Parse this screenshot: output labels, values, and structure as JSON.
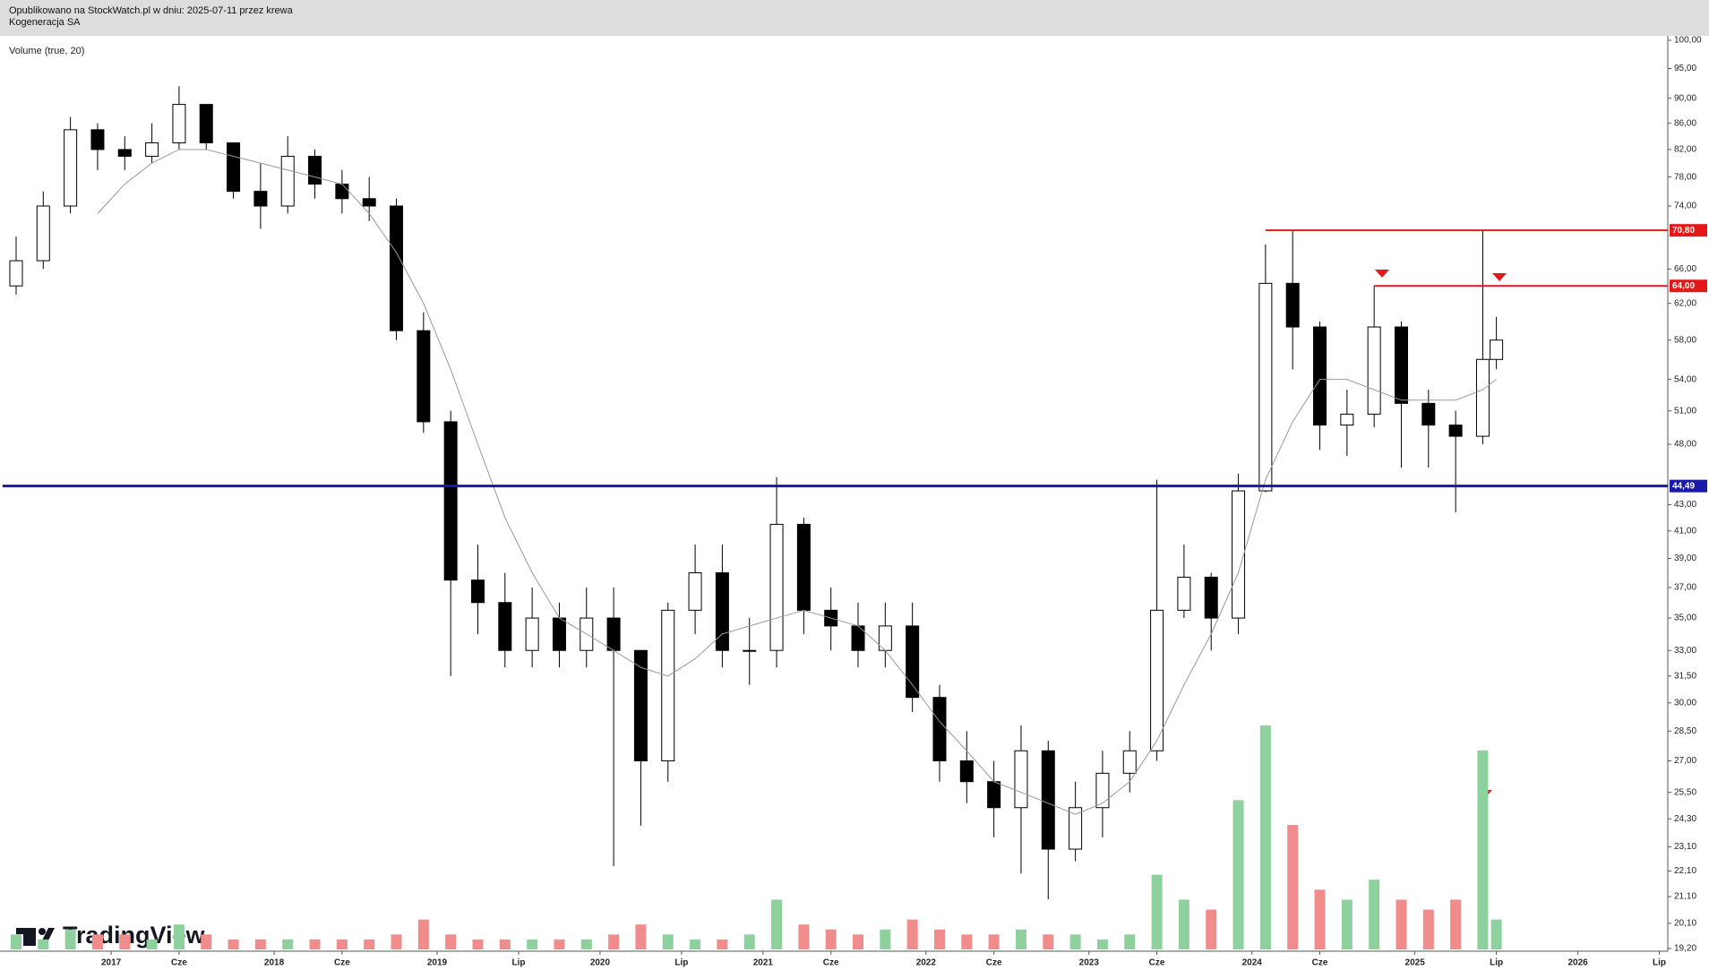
{
  "header": {
    "published": "Opublikowano na StockWatch.pl w dniu: 2025-07-11 przez krewa",
    "ticker": "Kogeneracja SA"
  },
  "chart_data": {
    "type": "candlestick",
    "indicator": "Volume (true, 20)",
    "watermark": "TradingView",
    "ylog": true,
    "ylim": [
      19.2,
      100
    ],
    "yticks": [
      {
        "value": 100,
        "label": "100,00"
      },
      {
        "value": 95,
        "label": "95,00"
      },
      {
        "value": 90,
        "label": "90,00"
      },
      {
        "value": 86,
        "label": "86,00"
      },
      {
        "value": 82,
        "label": "82,00"
      },
      {
        "value": 78,
        "label": "78,00"
      },
      {
        "value": 74,
        "label": "74,00"
      },
      {
        "value": 66,
        "label": "66,00"
      },
      {
        "value": 62,
        "label": "62,00"
      },
      {
        "value": 58,
        "label": "58,00"
      },
      {
        "value": 54,
        "label": "54,00"
      },
      {
        "value": 51,
        "label": "51,00"
      },
      {
        "value": 48,
        "label": "48,00"
      },
      {
        "value": 43,
        "label": "43,00"
      },
      {
        "value": 41,
        "label": "41,00"
      },
      {
        "value": 39,
        "label": "39,00"
      },
      {
        "value": 37,
        "label": "37,00"
      },
      {
        "value": 35,
        "label": "35,00"
      },
      {
        "value": 33,
        "label": "33,00"
      },
      {
        "value": 31.5,
        "label": "31,50"
      },
      {
        "value": 30,
        "label": "30,00"
      },
      {
        "value": 28.5,
        "label": "28,50"
      },
      {
        "value": 27,
        "label": "27,00"
      },
      {
        "value": 25.5,
        "label": "25,50"
      },
      {
        "value": 24.3,
        "label": "24,30"
      },
      {
        "value": 23.1,
        "label": "23,10"
      },
      {
        "value": 22.1,
        "label": "22,10"
      },
      {
        "value": 21.1,
        "label": "21,10"
      },
      {
        "value": 20.1,
        "label": "20,10"
      },
      {
        "value": 19.2,
        "label": "19,20"
      }
    ],
    "xticks": [
      {
        "value": "2017-01",
        "label": "2017"
      },
      {
        "value": "2017-06",
        "label": "Cze"
      },
      {
        "value": "2018-01",
        "label": "2018"
      },
      {
        "value": "2018-06",
        "label": "Cze"
      },
      {
        "value": "2019-01",
        "label": "2019"
      },
      {
        "value": "2019-07",
        "label": "Lip"
      },
      {
        "value": "2020-01",
        "label": "2020"
      },
      {
        "value": "2020-07",
        "label": "Lip"
      },
      {
        "value": "2021-01",
        "label": "2021"
      },
      {
        "value": "2021-06",
        "label": "Cze"
      },
      {
        "value": "2022-01",
        "label": "2022"
      },
      {
        "value": "2022-06",
        "label": "Cze"
      },
      {
        "value": "2023-01",
        "label": "2023"
      },
      {
        "value": "2023-06",
        "label": "Cze"
      },
      {
        "value": "2024-01",
        "label": "2024"
      },
      {
        "value": "2024-06",
        "label": "Cze"
      },
      {
        "value": "2025-01",
        "label": "2025"
      },
      {
        "value": "2025-07",
        "label": "Lip"
      },
      {
        "value": "2026-01",
        "label": "2026"
      },
      {
        "value": "2026-07",
        "label": "Lip"
      }
    ],
    "x": [
      "2016-06",
      "2016-08",
      "2016-10",
      "2016-12",
      "2017-02",
      "2017-04",
      "2017-06",
      "2017-08",
      "2017-10",
      "2017-12",
      "2018-02",
      "2018-04",
      "2018-06",
      "2018-08",
      "2018-10",
      "2018-12",
      "2019-02",
      "2019-04",
      "2019-06",
      "2019-08",
      "2019-10",
      "2019-12",
      "2020-02",
      "2020-04",
      "2020-06",
      "2020-08",
      "2020-10",
      "2020-12",
      "2021-02",
      "2021-04",
      "2021-06",
      "2021-08",
      "2021-10",
      "2021-12",
      "2022-02",
      "2022-04",
      "2022-06",
      "2022-08",
      "2022-10",
      "2022-12",
      "2023-02",
      "2023-04",
      "2023-06",
      "2023-08",
      "2023-10",
      "2023-12",
      "2024-02",
      "2024-04",
      "2024-06",
      "2024-08",
      "2024-10",
      "2024-12",
      "2025-02",
      "2025-04",
      "2025-06",
      "2025-07"
    ],
    "open": [
      64,
      67,
      74,
      85,
      82,
      81,
      83,
      89,
      83,
      76,
      74,
      81,
      77,
      75,
      74,
      59,
      50,
      37.5,
      36,
      33,
      35,
      33,
      35,
      33,
      27,
      35.5,
      38,
      33,
      33,
      41.5,
      35.5,
      34.5,
      33,
      34.5,
      30.3,
      27,
      26,
      24.8,
      27.5,
      23,
      24.8,
      26.4,
      27.5,
      35.5,
      37.7,
      35,
      44.1,
      64.3,
      59.4,
      49.7,
      50.7,
      59.4,
      51.7,
      49.7,
      48.7,
      56
    ],
    "high": [
      70,
      76,
      87,
      86,
      84,
      86,
      92,
      89,
      83,
      80,
      84,
      82,
      79,
      78,
      75,
      61,
      51,
      40,
      38,
      37,
      36,
      37,
      37,
      33,
      36,
      40,
      40,
      35,
      45.2,
      42,
      37,
      36,
      36,
      36,
      31,
      28.5,
      27,
      28.8,
      28,
      26,
      27.5,
      28.5,
      45,
      40,
      38,
      45.5,
      69,
      70.8,
      60,
      53,
      64,
      60,
      53,
      51,
      70.8,
      60.5
    ],
    "low": [
      63,
      66,
      73,
      79,
      79,
      80,
      82,
      82,
      75,
      71,
      73,
      75,
      73,
      72,
      58,
      49,
      31.5,
      34,
      32,
      32,
      32,
      32,
      22.3,
      24,
      26,
      34,
      32,
      31,
      32,
      34,
      33,
      32,
      32,
      29.5,
      26,
      25,
      23.5,
      22,
      21,
      22.5,
      23.5,
      25.5,
      27,
      35,
      33,
      34,
      44,
      55,
      47.5,
      47,
      49.5,
      46,
      46,
      42.4,
      48,
      55
    ],
    "close": [
      67,
      74,
      85,
      82,
      81,
      83,
      89,
      83,
      76,
      74,
      81,
      77,
      75,
      74,
      59,
      50,
      37.5,
      36,
      33,
      35,
      33,
      35,
      33,
      27,
      35.5,
      38,
      33,
      33,
      41.5,
      35.5,
      34.5,
      33,
      34.5,
      30.3,
      27,
      26,
      24.8,
      27.5,
      23,
      24.8,
      26.4,
      27.5,
      35.5,
      37.7,
      35,
      44.1,
      64.3,
      59.4,
      49.7,
      50.7,
      59.4,
      51.7,
      49.7,
      48.7,
      56,
      58
    ],
    "volume": [
      3,
      2,
      4,
      3,
      3,
      2,
      5,
      3,
      2,
      2,
      2,
      2,
      2,
      2,
      3,
      6,
      3,
      2,
      2,
      2,
      2,
      2,
      3,
      5,
      3,
      2,
      2,
      3,
      10,
      5,
      4,
      3,
      4,
      6,
      4,
      3,
      3,
      4,
      3,
      3,
      2,
      3,
      15,
      10,
      8,
      30,
      45,
      25,
      12,
      10,
      14,
      10,
      8,
      10,
      40,
      6
    ],
    "ma": [
      null,
      null,
      null,
      73,
      77,
      80,
      82,
      82,
      81,
      80,
      79,
      78,
      77,
      73,
      68,
      62,
      55,
      48,
      42,
      38,
      35,
      34,
      33,
      32,
      31.5,
      32.5,
      34,
      34.5,
      35,
      35.5,
      35,
      34.5,
      33,
      31,
      29,
      27.5,
      26,
      25.5,
      25,
      24.5,
      25,
      26,
      28,
      31,
      34,
      38,
      45,
      50,
      54,
      54,
      53,
      52,
      52,
      52,
      53,
      54
    ],
    "levels": [
      {
        "value": 70.8,
        "label": "70,80",
        "color": "#e31919",
        "from": "2024-02"
      },
      {
        "value": 64,
        "label": "64,00",
        "color": "#e31919",
        "from": "2024-10"
      },
      {
        "value": 44.49,
        "label": "44,49",
        "color": "#1a1aa8",
        "from": "2016-05"
      }
    ]
  }
}
